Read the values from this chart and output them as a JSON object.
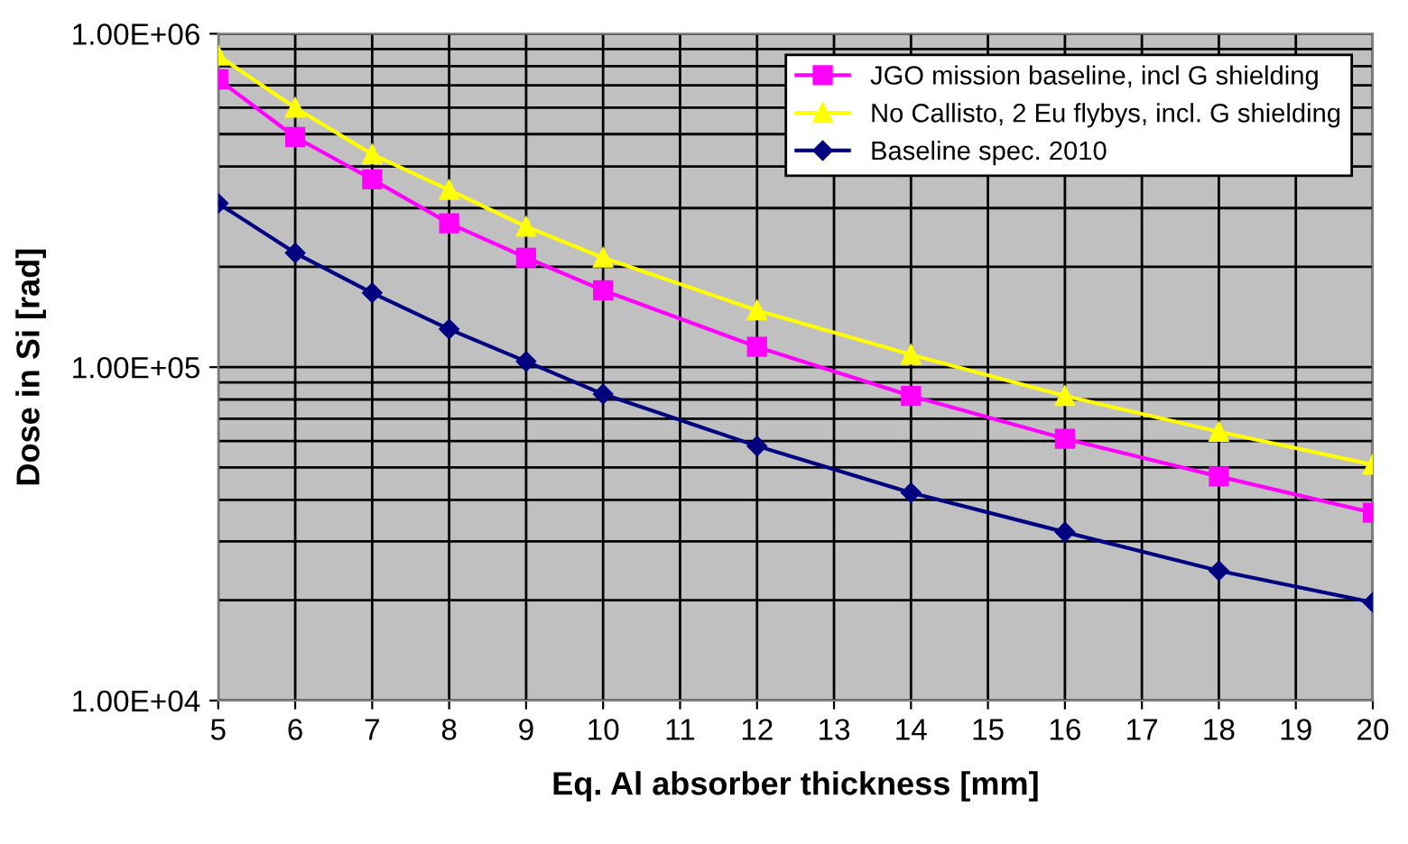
{
  "chart_data": {
    "type": "line",
    "xlabel": "Eq. Al absorber thickness [mm]",
    "ylabel": "Dose in Si [rad]",
    "x": [
      5,
      6,
      7,
      8,
      9,
      10,
      12,
      14,
      16,
      18,
      20
    ],
    "series": [
      {
        "name": "JGO mission baseline, incl G shielding",
        "color": "#ff00ff",
        "marker": "square",
        "values": [
          730000,
          490000,
          366000,
          270000,
          213000,
          170000,
          115000,
          82000,
          61000,
          47000,
          36600
        ]
      },
      {
        "name": "No Callisto, 2 Eu flybys, incl. G shielding",
        "color": "#ffff00",
        "marker": "triangle",
        "values": [
          860000,
          600000,
          435000,
          340000,
          264000,
          213000,
          148000,
          109000,
          82000,
          64000,
          51000
        ]
      },
      {
        "name": "Baseline spec. 2010",
        "color": "#000080",
        "marker": "diamond",
        "values": [
          310000,
          220000,
          167000,
          130000,
          104000,
          83000,
          58000,
          42000,
          32000,
          24500,
          19700
        ]
      }
    ],
    "log": "y",
    "xlim": [
      5,
      20
    ],
    "xticks": [
      5,
      6,
      7,
      8,
      9,
      10,
      11,
      12,
      13,
      14,
      15,
      16,
      17,
      18,
      19,
      20
    ],
    "ylim": [
      10000,
      1000000
    ],
    "yticks": [
      {
        "value": 10000,
        "label": "1.00E+04"
      },
      {
        "value": 100000,
        "label": "1.00E+05"
      },
      {
        "value": 1000000,
        "label": "1.00E+06"
      }
    ],
    "grid": true,
    "legend": "top right"
  }
}
